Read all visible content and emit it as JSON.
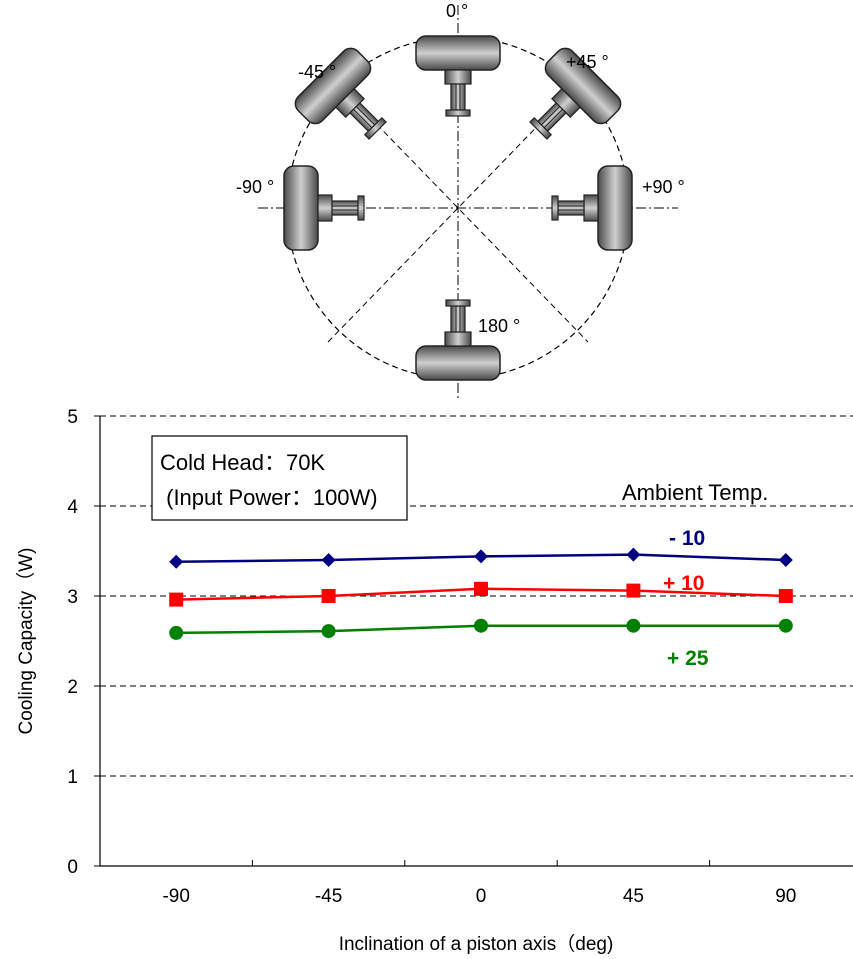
{
  "diagram": {
    "labels": [
      {
        "id": "0",
        "text": "0 °"
      },
      {
        "id": "m45",
        "text": "-45 °"
      },
      {
        "id": "p45",
        "text": "+45 °"
      },
      {
        "id": "m90",
        "text": "-90 °"
      },
      {
        "id": "p90",
        "text": "+90 °"
      },
      {
        "id": "180",
        "text": "180 °"
      }
    ]
  },
  "chart_data": {
    "type": "line",
    "title": "",
    "xlabel": "Inclination of a piston axis（deg)",
    "ylabel": "Cooling Capacity（W)",
    "x": [
      -90,
      -45,
      0,
      45,
      90
    ],
    "x_tick_labels": [
      "-90",
      "-45",
      "0",
      "45",
      "90"
    ],
    "y_tick_labels": [
      "0",
      "1",
      "2",
      "3",
      "4",
      "5"
    ],
    "xlim": [
      -112.5,
      112.5
    ],
    "ylim": [
      0,
      5
    ],
    "grid": "horizontal dashed",
    "legend_title": "Ambient Temp.",
    "annotation_box": [
      "Cold Head：70K",
      " (Input Power：100W)"
    ],
    "series": [
      {
        "name": "- 10",
        "values": [
          3.38,
          3.4,
          3.44,
          3.46,
          3.4
        ],
        "color": "#000080",
        "marker": "diamond"
      },
      {
        "name": "+ 10",
        "values": [
          2.96,
          3.0,
          3.08,
          3.06,
          3.0
        ],
        "color": "#ff0000",
        "marker": "square"
      },
      {
        "name": "+ 25",
        "values": [
          2.59,
          2.61,
          2.67,
          2.67,
          2.67
        ],
        "color": "#008000",
        "marker": "circle"
      }
    ]
  }
}
